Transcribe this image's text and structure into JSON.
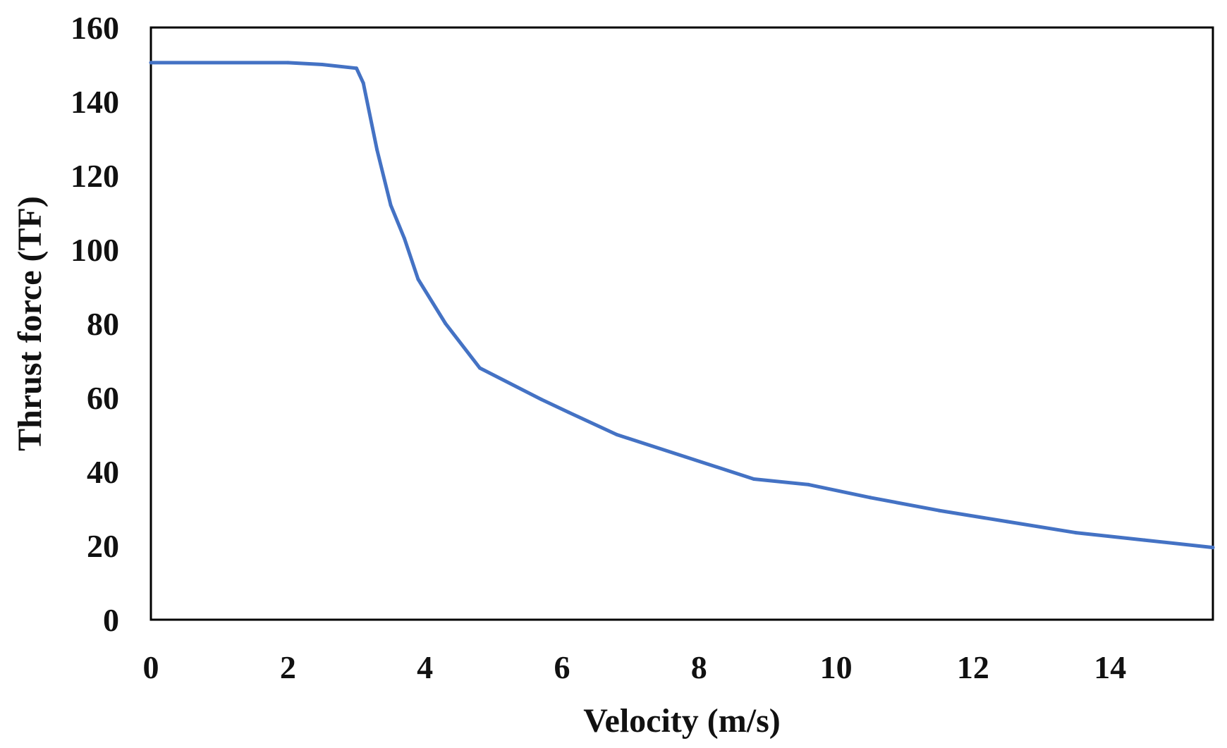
{
  "chart_data": {
    "type": "line",
    "title": "",
    "xlabel": "Velocity (m/s)",
    "ylabel": "Thrust force (TF)",
    "xlim": [
      0,
      15.5
    ],
    "ylim": [
      0,
      160
    ],
    "xticks": [
      0,
      2,
      4,
      6,
      8,
      10,
      12,
      14
    ],
    "yticks": [
      0,
      20,
      40,
      60,
      80,
      100,
      120,
      140,
      160
    ],
    "xtick_labels": [
      "0",
      "2",
      "4",
      "6",
      "8",
      "10",
      "12",
      "14"
    ],
    "ytick_labels": [
      "0",
      "20",
      "40",
      "60",
      "80",
      "100",
      "120",
      "140",
      "160"
    ],
    "grid": false,
    "legend": "none",
    "series": [
      {
        "name": "Thrust force",
        "color": "#4472C4",
        "x": [
          0,
          2.0,
          2.5,
          3.0,
          3.1,
          3.3,
          3.5,
          3.7,
          3.9,
          4.3,
          4.8,
          5.7,
          6.1,
          6.8,
          7.8,
          8.8,
          9.6,
          10.5,
          11.5,
          12.5,
          13.5,
          14.5,
          15.5
        ],
        "y": [
          150.5,
          150.5,
          150,
          149,
          145,
          127,
          112,
          103,
          92,
          80,
          68,
          59.5,
          56,
          50,
          44,
          38,
          36.5,
          33,
          29.5,
          26.5,
          23.5,
          21.5,
          19.5
        ]
      }
    ]
  }
}
